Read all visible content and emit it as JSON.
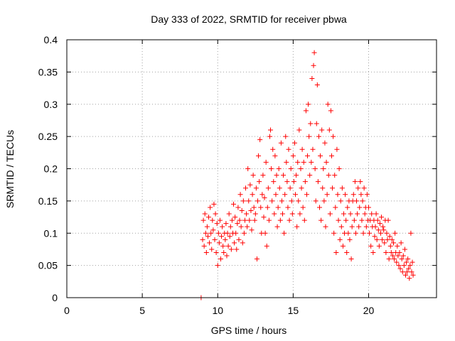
{
  "chart_data": {
    "type": "scatter",
    "title": "Day 333 of 2022, SRMTID for receiver pbwa",
    "xlabel": "GPS time / hours",
    "ylabel": "SRMTID / TECUs",
    "xlim": [
      0,
      24.5
    ],
    "ylim": [
      0,
      0.4
    ],
    "x_ticks": [
      0,
      5,
      10,
      15,
      20
    ],
    "x_tick_labels": [
      "0",
      "5",
      "10",
      "15",
      "20"
    ],
    "y_ticks": [
      0,
      0.05,
      0.1,
      0.15,
      0.2,
      0.25,
      0.3,
      0.35,
      0.4
    ],
    "y_tick_labels": [
      "0",
      "0.05",
      "0.1",
      "0.15",
      "0.2",
      "0.25",
      "0.3",
      "0.35",
      "0.4"
    ],
    "grid": true,
    "marker": "plus",
    "color": "#ff0000",
    "series": [
      {
        "name": "SRMTID",
        "points": [
          [
            8.9,
            0.0
          ],
          [
            9.0,
            0.09
          ],
          [
            9.05,
            0.12
          ],
          [
            9.1,
            0.08
          ],
          [
            9.15,
            0.13
          ],
          [
            9.2,
            0.1
          ],
          [
            9.25,
            0.07
          ],
          [
            9.3,
            0.11
          ],
          [
            9.35,
            0.095
          ],
          [
            9.4,
            0.125
          ],
          [
            9.45,
            0.085
          ],
          [
            9.5,
            0.14
          ],
          [
            9.55,
            0.1
          ],
          [
            9.6,
            0.075
          ],
          [
            9.65,
            0.12
          ],
          [
            9.7,
            0.105
          ],
          [
            9.75,
            0.145
          ],
          [
            9.8,
            0.09
          ],
          [
            9.85,
            0.13
          ],
          [
            9.9,
            0.07
          ],
          [
            9.95,
            0.115
          ],
          [
            10.0,
            0.05
          ],
          [
            10.05,
            0.1
          ],
          [
            10.1,
            0.085
          ],
          [
            10.15,
            0.12
          ],
          [
            10.2,
            0.06
          ],
          [
            10.25,
            0.095
          ],
          [
            10.3,
            0.11
          ],
          [
            10.35,
            0.08
          ],
          [
            10.4,
            0.07
          ],
          [
            10.45,
            0.1
          ],
          [
            10.5,
            0.09
          ],
          [
            10.55,
            0.115
          ],
          [
            10.6,
            0.065
          ],
          [
            10.65,
            0.1
          ],
          [
            10.7,
            0.08
          ],
          [
            10.75,
            0.13
          ],
          [
            10.8,
            0.095
          ],
          [
            10.85,
            0.11
          ],
          [
            10.9,
            0.075
          ],
          [
            10.95,
            0.12
          ],
          [
            11.0,
            0.1
          ],
          [
            11.05,
            0.145
          ],
          [
            11.1,
            0.085
          ],
          [
            11.15,
            0.125
          ],
          [
            11.2,
            0.1
          ],
          [
            11.25,
            0.075
          ],
          [
            11.3,
            0.115
          ],
          [
            11.35,
            0.14
          ],
          [
            11.4,
            0.09
          ],
          [
            11.45,
            0.12
          ],
          [
            11.5,
            0.16
          ],
          [
            11.55,
            0.11
          ],
          [
            11.6,
            0.135
          ],
          [
            11.65,
            0.085
          ],
          [
            11.7,
            0.15
          ],
          [
            11.75,
            0.1
          ],
          [
            11.8,
            0.12
          ],
          [
            11.85,
            0.17
          ],
          [
            11.9,
            0.13
          ],
          [
            11.95,
            0.11
          ],
          [
            12.0,
            0.2
          ],
          [
            12.05,
            0.15
          ],
          [
            12.1,
            0.12
          ],
          [
            12.15,
            0.175
          ],
          [
            12.2,
            0.135
          ],
          [
            12.25,
            0.105
          ],
          [
            12.3,
            0.16
          ],
          [
            12.35,
            0.19
          ],
          [
            12.4,
            0.14
          ],
          [
            12.45,
            0.12
          ],
          [
            12.5,
            0.13
          ],
          [
            12.55,
            0.17
          ],
          [
            12.6,
            0.06
          ],
          [
            12.65,
            0.15
          ],
          [
            12.7,
            0.22
          ],
          [
            12.75,
            0.18
          ],
          [
            12.8,
            0.245
          ],
          [
            12.85,
            0.14
          ],
          [
            12.9,
            0.1
          ],
          [
            12.95,
            0.16
          ],
          [
            13.0,
            0.19
          ],
          [
            13.05,
            0.125
          ],
          [
            13.1,
            0.155
          ],
          [
            13.15,
            0.1
          ],
          [
            13.2,
            0.21
          ],
          [
            13.25,
            0.08
          ],
          [
            13.3,
            0.14
          ],
          [
            13.35,
            0.17
          ],
          [
            13.4,
            0.12
          ],
          [
            13.45,
            0.25
          ],
          [
            13.5,
            0.26
          ],
          [
            13.55,
            0.2
          ],
          [
            13.6,
            0.15
          ],
          [
            13.65,
            0.23
          ],
          [
            13.7,
            0.18
          ],
          [
            13.75,
            0.13
          ],
          [
            13.8,
            0.22
          ],
          [
            13.85,
            0.16
          ],
          [
            13.9,
            0.19
          ],
          [
            13.95,
            0.11
          ],
          [
            14.0,
            0.14
          ],
          [
            14.05,
            0.2
          ],
          [
            14.1,
            0.17
          ],
          [
            14.15,
            0.12
          ],
          [
            14.2,
            0.24
          ],
          [
            14.25,
            0.15
          ],
          [
            14.3,
            0.13
          ],
          [
            14.35,
            0.19
          ],
          [
            14.4,
            0.1
          ],
          [
            14.45,
            0.16
          ],
          [
            14.5,
            0.25
          ],
          [
            14.55,
            0.21
          ],
          [
            14.6,
            0.18
          ],
          [
            14.65,
            0.14
          ],
          [
            14.7,
            0.23
          ],
          [
            14.75,
            0.12
          ],
          [
            14.8,
            0.17
          ],
          [
            14.85,
            0.2
          ],
          [
            14.9,
            0.15
          ],
          [
            14.95,
            0.13
          ],
          [
            15.0,
            0.22
          ],
          [
            15.05,
            0.18
          ],
          [
            15.1,
            0.24
          ],
          [
            15.15,
            0.16
          ],
          [
            15.2,
            0.19
          ],
          [
            15.25,
            0.11
          ],
          [
            15.3,
            0.21
          ],
          [
            15.35,
            0.15
          ],
          [
            15.4,
            0.26
          ],
          [
            15.45,
            0.13
          ],
          [
            15.5,
            0.2
          ],
          [
            15.55,
            0.17
          ],
          [
            15.6,
            0.23
          ],
          [
            15.65,
            0.14
          ],
          [
            15.7,
            0.21
          ],
          [
            15.75,
            0.12
          ],
          [
            15.8,
            0.18
          ],
          [
            15.85,
            0.29
          ],
          [
            15.9,
            0.16
          ],
          [
            15.95,
            0.22
          ],
          [
            16.0,
            0.3
          ],
          [
            16.05,
            0.25
          ],
          [
            16.1,
            0.19
          ],
          [
            16.15,
            0.27
          ],
          [
            16.2,
            0.21
          ],
          [
            16.25,
            0.34
          ],
          [
            16.3,
            0.23
          ],
          [
            16.35,
            0.36
          ],
          [
            16.4,
            0.38
          ],
          [
            16.45,
            0.2
          ],
          [
            16.5,
            0.15
          ],
          [
            16.55,
            0.27
          ],
          [
            16.6,
            0.33
          ],
          [
            16.65,
            0.18
          ],
          [
            16.7,
            0.25
          ],
          [
            16.75,
            0.14
          ],
          [
            16.8,
            0.22
          ],
          [
            16.85,
            0.12
          ],
          [
            16.9,
            0.26
          ],
          [
            16.95,
            0.17
          ],
          [
            17.0,
            0.2
          ],
          [
            17.05,
            0.15
          ],
          [
            17.1,
            0.24
          ],
          [
            17.15,
            0.11
          ],
          [
            17.2,
            0.21
          ],
          [
            17.25,
            0.16
          ],
          [
            17.3,
            0.3
          ],
          [
            17.35,
            0.19
          ],
          [
            17.4,
            0.26
          ],
          [
            17.45,
            0.13
          ],
          [
            17.5,
            0.29
          ],
          [
            17.55,
            0.22
          ],
          [
            17.6,
            0.17
          ],
          [
            17.65,
            0.25
          ],
          [
            17.7,
            0.1
          ],
          [
            17.75,
            0.19
          ],
          [
            17.8,
            0.14
          ],
          [
            17.85,
            0.07
          ],
          [
            17.9,
            0.23
          ],
          [
            17.95,
            0.16
          ],
          [
            18.0,
            0.12
          ],
          [
            18.05,
            0.2
          ],
          [
            18.1,
            0.09
          ],
          [
            18.15,
            0.15
          ],
          [
            18.2,
            0.11
          ],
          [
            18.25,
            0.17
          ],
          [
            18.3,
            0.08
          ],
          [
            18.35,
            0.13
          ],
          [
            18.4,
            0.1
          ],
          [
            18.45,
            0.16
          ],
          [
            18.5,
            0.12
          ],
          [
            18.55,
            0.07
          ],
          [
            18.6,
            0.14
          ],
          [
            18.65,
            0.1
          ],
          [
            18.7,
            0.15
          ],
          [
            18.75,
            0.09
          ],
          [
            18.8,
            0.13
          ],
          [
            18.85,
            0.06
          ],
          [
            18.9,
            0.11
          ],
          [
            18.95,
            0.15
          ],
          [
            19.0,
            0.16
          ],
          [
            19.05,
            0.12
          ],
          [
            19.1,
            0.18
          ],
          [
            19.15,
            0.1
          ],
          [
            19.2,
            0.15
          ],
          [
            19.25,
            0.13
          ],
          [
            19.3,
            0.17
          ],
          [
            19.35,
            0.11
          ],
          [
            19.4,
            0.14
          ],
          [
            19.45,
            0.18
          ],
          [
            19.5,
            0.16
          ],
          [
            19.55,
            0.12
          ],
          [
            19.6,
            0.15
          ],
          [
            19.65,
            0.1
          ],
          [
            19.7,
            0.17
          ],
          [
            19.75,
            0.13
          ],
          [
            19.8,
            0.14
          ],
          [
            19.85,
            0.11
          ],
          [
            19.9,
            0.16
          ],
          [
            19.95,
            0.12
          ],
          [
            20.0,
            0.14
          ],
          [
            20.05,
            0.1
          ],
          [
            20.1,
            0.12
          ],
          [
            20.15,
            0.08
          ],
          [
            20.2,
            0.13
          ],
          [
            20.25,
            0.11
          ],
          [
            20.3,
            0.07
          ],
          [
            20.35,
            0.12
          ],
          [
            20.4,
            0.095
          ],
          [
            20.45,
            0.11
          ],
          [
            20.5,
            0.13
          ],
          [
            20.55,
            0.09
          ],
          [
            20.6,
            0.12
          ],
          [
            20.65,
            0.105
          ],
          [
            20.7,
            0.08
          ],
          [
            20.75,
            0.115
          ],
          [
            20.8,
            0.1
          ],
          [
            20.85,
            0.125
          ],
          [
            20.9,
            0.09
          ],
          [
            20.95,
            0.11
          ],
          [
            21.0,
            0.105
          ],
          [
            21.05,
            0.085
          ],
          [
            21.1,
            0.12
          ],
          [
            21.15,
            0.07
          ],
          [
            21.2,
            0.1
          ],
          [
            21.25,
            0.09
          ],
          [
            21.3,
            0.12
          ],
          [
            21.35,
            0.06
          ],
          [
            21.4,
            0.095
          ],
          [
            21.45,
            0.08
          ],
          [
            21.5,
            0.07
          ],
          [
            21.55,
            0.09
          ],
          [
            21.6,
            0.065
          ],
          [
            21.65,
            0.085
          ],
          [
            21.7,
            0.06
          ],
          [
            21.75,
            0.1
          ],
          [
            21.8,
            0.07
          ],
          [
            21.85,
            0.055
          ],
          [
            21.9,
            0.08
          ],
          [
            21.95,
            0.065
          ],
          [
            22.0,
            0.05
          ],
          [
            22.05,
            0.07
          ],
          [
            22.1,
            0.045
          ],
          [
            22.15,
            0.085
          ],
          [
            22.2,
            0.06
          ],
          [
            22.25,
            0.04
          ],
          [
            22.3,
            0.065
          ],
          [
            22.35,
            0.05
          ],
          [
            22.4,
            0.075
          ],
          [
            22.45,
            0.035
          ],
          [
            22.5,
            0.055
          ],
          [
            22.55,
            0.04
          ],
          [
            22.6,
            0.06
          ],
          [
            22.65,
            0.045
          ],
          [
            22.7,
            0.03
          ],
          [
            22.75,
            0.05
          ],
          [
            22.8,
            0.1
          ],
          [
            22.85,
            0.04
          ],
          [
            22.9,
            0.055
          ],
          [
            22.95,
            0.035
          ]
        ]
      }
    ]
  }
}
